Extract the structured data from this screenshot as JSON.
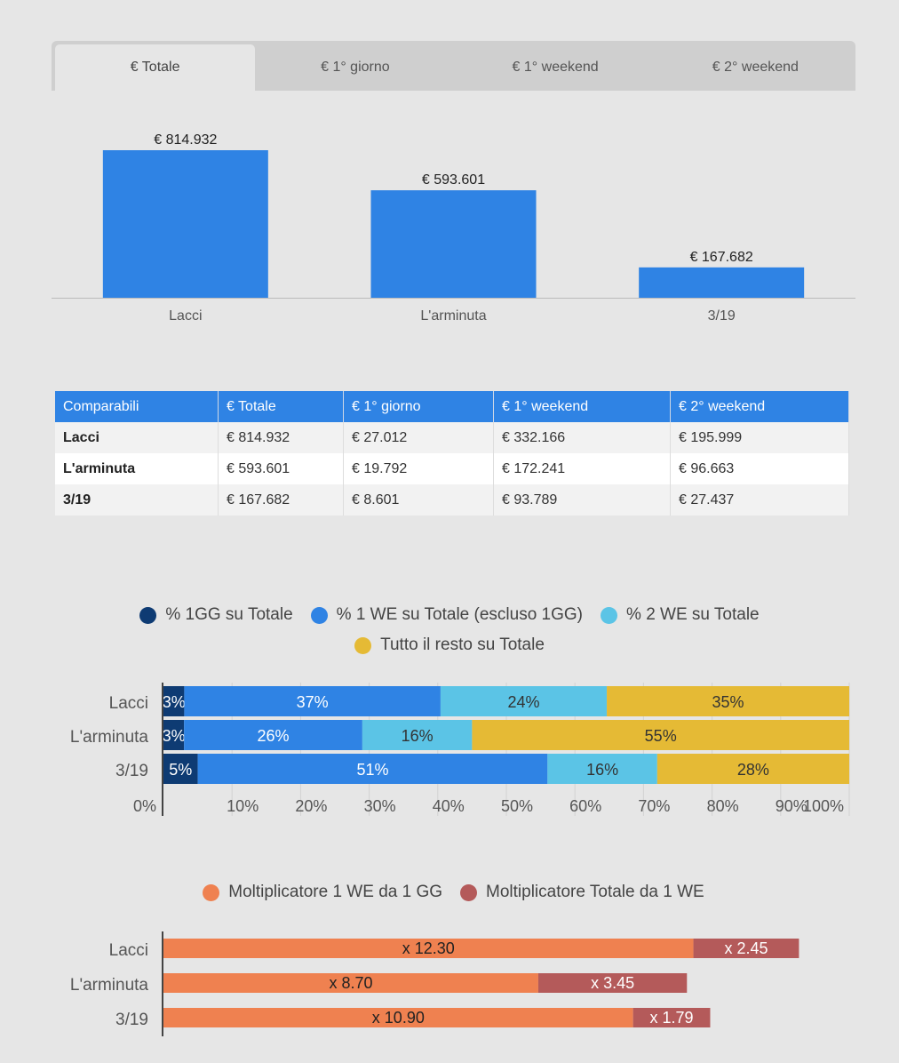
{
  "tabs": [
    {
      "label": "€ Totale",
      "active": true
    },
    {
      "label": "€ 1° giorno",
      "active": false
    },
    {
      "label": "€ 1° weekend",
      "active": false
    },
    {
      "label": "€ 2° weekend",
      "active": false
    }
  ],
  "table": {
    "headers": [
      "Comparabili",
      "€ Totale",
      "€ 1° giorno",
      "€ 1° weekend",
      "€ 2° weekend"
    ],
    "rows": [
      [
        "Lacci",
        "€ 814.932",
        "€ 27.012",
        "€ 332.166",
        "€ 195.999"
      ],
      [
        "L'arminuta",
        "€ 593.601",
        "€ 19.792",
        "€ 172.241",
        "€ 96.663"
      ],
      [
        "3/19",
        "€ 167.682",
        "€ 8.601",
        "€ 93.789",
        "€ 27.437"
      ]
    ]
  },
  "colors": {
    "bar_blue": "#2f83e4",
    "navy": "#0e3b73",
    "blue": "#2f83e4",
    "cyan": "#5bc4e6",
    "yellow": "#e5ba35",
    "orange": "#ef8150",
    "red": "#b45a5a"
  },
  "chart_data": [
    {
      "type": "bar",
      "categories": [
        "Lacci",
        "L'arminuta",
        "3/19"
      ],
      "values": [
        814932,
        593601,
        167682
      ],
      "data_labels": [
        "€ 814.932",
        "€ 593.601",
        "€ 167.682"
      ],
      "title": "",
      "xlabel": "",
      "ylabel": "",
      "grid": false
    },
    {
      "type": "bar",
      "orientation": "horizontal",
      "stacked": true,
      "categories": [
        "Lacci",
        "L'arminuta",
        "3/19"
      ],
      "series": [
        {
          "name": "% 1GG su Totale",
          "values": [
            3,
            3,
            5
          ],
          "color": "#0e3b73"
        },
        {
          "name": "% 1 WE su Totale (escluso 1GG)",
          "values": [
            37,
            26,
            51
          ],
          "color": "#2f83e4"
        },
        {
          "name": "% 2 WE su Totale",
          "values": [
            24,
            16,
            16
          ],
          "color": "#5bc4e6"
        },
        {
          "name": "Tutto il resto su Totale",
          "values": [
            35,
            55,
            28
          ],
          "color": "#e5ba35"
        }
      ],
      "data_labels": [
        [
          "3%",
          "37%",
          "24%",
          "35%"
        ],
        [
          "3%",
          "26%",
          "16%",
          "55%"
        ],
        [
          "5%",
          "51%",
          "16%",
          "28%"
        ]
      ],
      "xticks": [
        "0%",
        "10%",
        "20%",
        "30%",
        "40%",
        "50%",
        "60%",
        "70%",
        "80%",
        "90%",
        "100%"
      ],
      "xlim": [
        0,
        100
      ],
      "legend": "top",
      "grid": true
    },
    {
      "type": "bar",
      "orientation": "horizontal",
      "stacked": true,
      "categories": [
        "Lacci",
        "L'arminuta",
        "3/19"
      ],
      "series": [
        {
          "name": "Moltiplicatore 1 WE da 1 GG",
          "values": [
            12.3,
            8.7,
            10.9
          ],
          "color": "#ef8150"
        },
        {
          "name": "Moltiplicatore Totale da 1 WE",
          "values": [
            2.45,
            3.45,
            1.79
          ],
          "color": "#b45a5a"
        }
      ],
      "data_labels": [
        [
          "x 12.30",
          "x 2.45"
        ],
        [
          "x 8.70",
          "x 3.45"
        ],
        [
          "x 10.90",
          "x 1.79"
        ]
      ],
      "legend": "top",
      "grid": false
    }
  ]
}
